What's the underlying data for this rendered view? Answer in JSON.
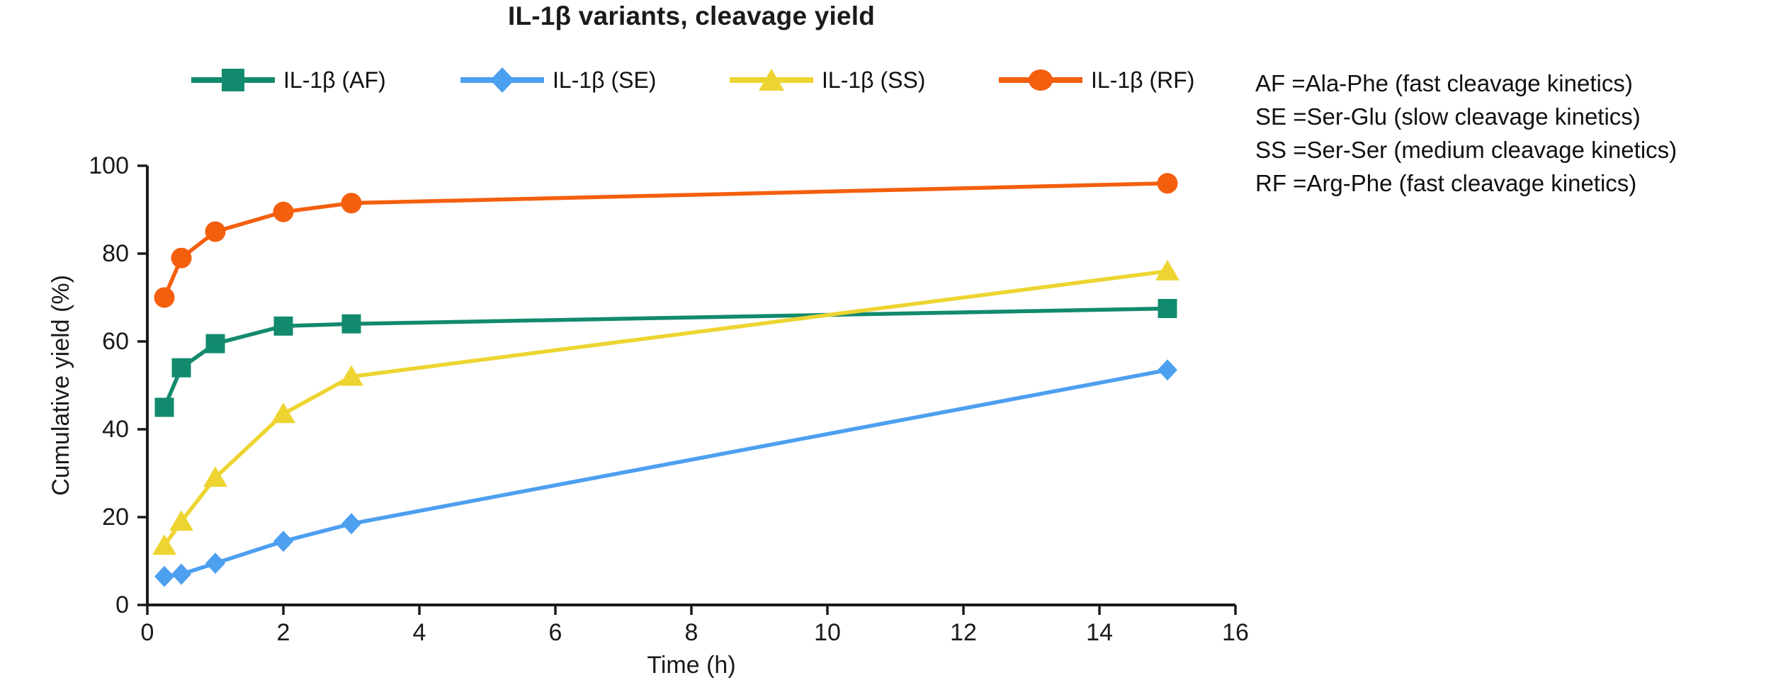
{
  "title": "IL-1β variants, cleavage yield",
  "notes": {
    "lines": [
      "AF =Ala-Phe (fast cleavage kinetics)",
      "SE =Ser-Glu (slow cleavage kinetics)",
      "SS =Ser-Ser (medium cleavage kinetics)",
      "RF =Arg-Phe (fast cleavage kinetics)"
    ]
  },
  "chart_data": {
    "type": "line",
    "x": [
      0.25,
      0.5,
      1,
      2,
      3,
      15
    ],
    "series": [
      {
        "id": "af",
        "name": "IL-1β (AF)",
        "marker": "square",
        "color": "#128A6E",
        "values": [
          45,
          54,
          59.5,
          63.5,
          64,
          67.5
        ]
      },
      {
        "id": "se",
        "name": "IL-1β (SE)",
        "marker": "diamond",
        "color": "#4D9FF0",
        "values": [
          6.5,
          7,
          9.5,
          14.5,
          18.5,
          53.5
        ]
      },
      {
        "id": "ss",
        "name": "IL-1β (SS)",
        "marker": "triangle",
        "color": "#EDD431",
        "values": [
          13.5,
          19,
          29,
          43.5,
          52,
          76
        ]
      },
      {
        "id": "rf",
        "name": "IL-1β (RF)",
        "marker": "circle",
        "color": "#F45F0E",
        "values": [
          70,
          79,
          85,
          89.5,
          91.5,
          96
        ]
      }
    ],
    "xlabel": "Time (h)",
    "ylabel": "Cumulative yield (%)",
    "xlim": [
      0,
      16
    ],
    "ylim": [
      0,
      100
    ],
    "xticks": [
      0,
      2,
      4,
      6,
      8,
      10,
      12,
      14,
      16
    ],
    "yticks": [
      0,
      20,
      40,
      60,
      80,
      100
    ],
    "grid": false,
    "legend_position": "top",
    "axis_color": "#1a1a1a"
  }
}
